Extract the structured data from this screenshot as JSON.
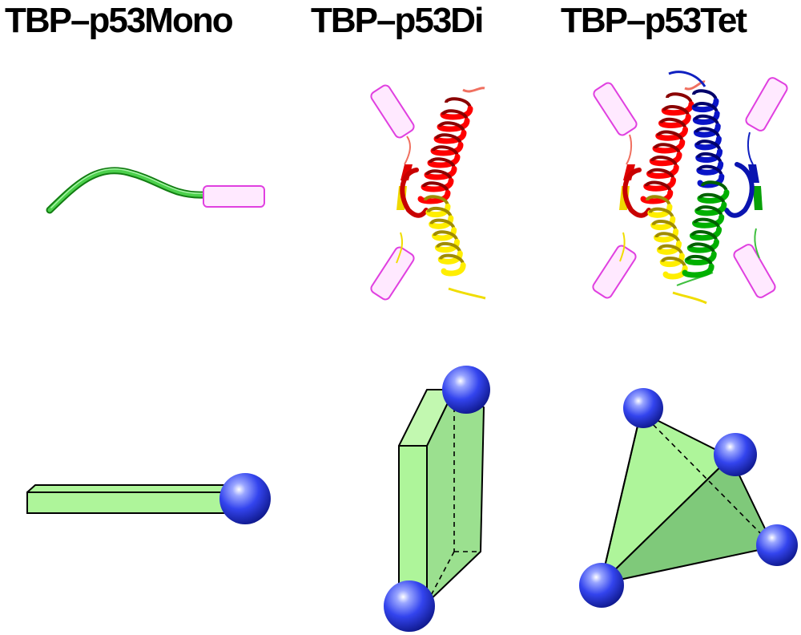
{
  "titles": {
    "mono": "TBP–p53Mono",
    "di": "TBP–p53Di",
    "tet": "TBP–p53Tet"
  },
  "colors": {
    "background": "#ffffff",
    "tbp_cylinder_fill": "#ffe9ff",
    "tbp_cylinder_stroke": "#e040e0",
    "p53_chain_a": "#ff0000",
    "p53_chain_b": "#ffee00",
    "p53_chain_c": "#00b000",
    "p53_chain_d": "#0a14c8",
    "model_face_light": "#aef59a",
    "model_face_dark": "#7fc97a",
    "model_edge": "#000000",
    "sphere": "#3344ee"
  },
  "icons": [
    "tbp-cylinder",
    "alpha-helix",
    "beta-strand",
    "sphere-node",
    "bar-model",
    "slab-model",
    "tetrahedron-model"
  ]
}
